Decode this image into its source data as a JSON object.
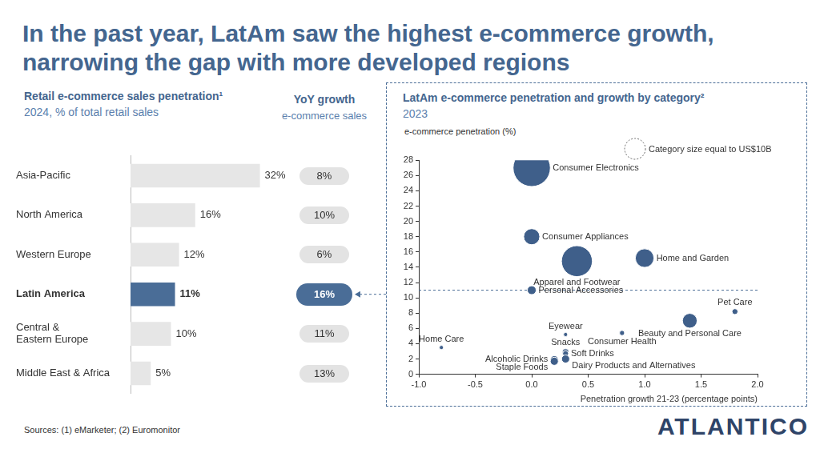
{
  "title": "In the past year, LatAm saw the highest e-commerce growth, narrowing the gap with more developed regions",
  "chart_data": [
    {
      "type": "bar",
      "orientation": "horizontal",
      "title": "Retail e-commerce sales penetration¹",
      "subtitle": "2024, % of total retail sales",
      "categories": [
        "Asia-Pacific",
        "North America",
        "Western Europe",
        "Latin America",
        "Central & Eastern Europe",
        "Middle East & Africa"
      ],
      "values": [
        32,
        16,
        12,
        11,
        10,
        5
      ],
      "value_labels": [
        "32%",
        "16%",
        "12%",
        "11%",
        "10%",
        "5%"
      ],
      "colors": [
        "#e6e6e6",
        "#e6e6e6",
        "#e6e6e6",
        "#4a6d97",
        "#e6e6e6",
        "#e6e6e6"
      ],
      "xlim": [
        0,
        40
      ],
      "grid": false,
      "data_labels": true,
      "tick_labels": "y",
      "yoy_growth": {
        "title": "YoY growth",
        "subtitle": "e-commerce sales",
        "values": [
          8,
          10,
          6,
          16,
          11,
          13
        ],
        "value_labels": [
          "8%",
          "10%",
          "6%",
          "16%",
          "11%",
          "13%"
        ]
      }
    },
    {
      "type": "bubble",
      "title": "LatAm e-commerce penetration and growth by category²",
      "subtitle": "2023",
      "x_label": "Penetration growth 21-23 (percentage points)",
      "y_label": "e-commerce penetration (%)",
      "xlim": [
        -1,
        2
      ],
      "xticks": [
        {
          "value": -1,
          "label": "-1.0"
        },
        -0.5,
        {
          "value": 0,
          "label": "0.0"
        },
        0.5,
        {
          "value": 1,
          "label": "1.0"
        },
        1.5,
        {
          "value": 2,
          "label": "2.0"
        }
      ],
      "ylim": [
        0,
        28
      ],
      "yticks": [
        0,
        2,
        4,
        6,
        8,
        10,
        12,
        14,
        16,
        18,
        20,
        22,
        24,
        26,
        28
      ],
      "grid": false,
      "color": "#3f5f8a",
      "reference_y": 11,
      "size_legend": {
        "label": "Category size equal to US$10B",
        "size": 10
      },
      "points": [
        {
          "name": "Consumer Electronics",
          "x": 0.0,
          "y": 27,
          "size": 32
        },
        {
          "name": "Consumer Appliances",
          "x": 0.0,
          "y": 18,
          "size": 6
        },
        {
          "name": "Apparel and Footwear",
          "x": 0.4,
          "y": 14.8,
          "size": 22
        },
        {
          "name": "Home and Garden",
          "x": 1.0,
          "y": 15.2,
          "size": 8
        },
        {
          "name": "Personal Accessories",
          "x": 0.0,
          "y": 11,
          "size": 1.8
        },
        {
          "name": "Pet Care",
          "x": 1.8,
          "y": 8.2,
          "size": 0.8
        },
        {
          "name": "Beauty and Personal Care",
          "x": 1.4,
          "y": 7,
          "size": 5
        },
        {
          "name": "Eyewear",
          "x": 0.3,
          "y": 5.2,
          "size": 0.4
        },
        {
          "name": "Consumer Health",
          "x": 0.8,
          "y": 5.4,
          "size": 0.6
        },
        {
          "name": "Snacks",
          "x": 0.3,
          "y": 2.9,
          "size": 1.0
        },
        {
          "name": "Soft Drinks",
          "x": 0.3,
          "y": 2.7,
          "size": 0.8
        },
        {
          "name": "Alcoholic Drinks",
          "x": 0.2,
          "y": 1.9,
          "size": 1.5
        },
        {
          "name": "Staple Foods",
          "x": 0.2,
          "y": 1.7,
          "size": 1.5
        },
        {
          "name": "Dairy Products and Alternatives",
          "x": 0.3,
          "y": 2.0,
          "size": 1.5
        },
        {
          "name": "Home Care",
          "x": -0.8,
          "y": 3.5,
          "size": 0.4
        }
      ]
    }
  ],
  "sources": "Sources: (1) eMarketer; (2) Euromonitor",
  "logo": "ATLANTICO"
}
